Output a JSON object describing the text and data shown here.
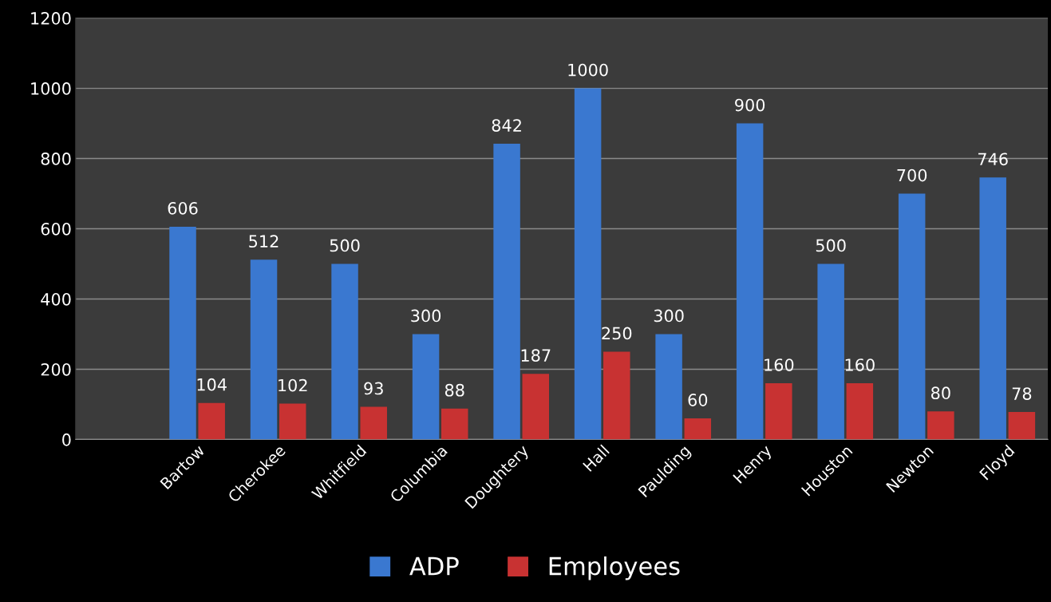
{
  "chart_data": {
    "type": "bar",
    "categories": [
      null,
      "Bartow",
      "Cherokee",
      "Whitfield",
      "Columbia",
      "Doughtery",
      "Hall",
      "Paulding",
      "Henry",
      "Houston",
      "Newton",
      "Floyd"
    ],
    "series": [
      {
        "name": "ADP",
        "color": "#3a78d0",
        "values": [
          null,
          606,
          512,
          500,
          300,
          842,
          1000,
          300,
          900,
          500,
          700,
          746
        ]
      },
      {
        "name": "Employees",
        "color": "#c83232",
        "values": [
          null,
          104,
          102,
          93,
          88,
          187,
          250,
          60,
          160,
          160,
          80,
          78
        ]
      }
    ],
    "ylim": [
      0,
      1200
    ],
    "yticks": [
      0,
      200,
      400,
      600,
      800,
      1000,
      1200
    ],
    "grid": "y",
    "legend": "bottom",
    "data_labels": true
  }
}
